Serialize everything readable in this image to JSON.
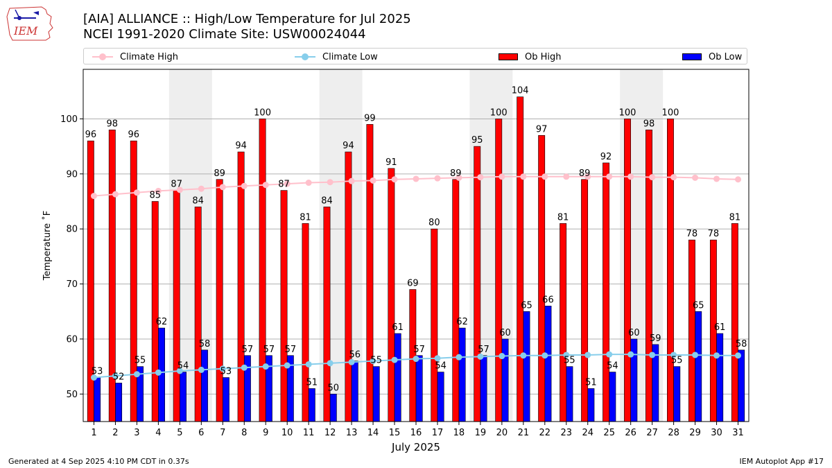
{
  "logo_text": "IEM",
  "title_line1": "[AIA] ALLIANCE :: High/Low Temperature for Jul 2025",
  "title_line2": "NCEI 1991-2020 Climate Site: USW00024044",
  "legend": {
    "climate_high": "Climate High",
    "climate_low": "Climate Low",
    "ob_high": "Ob High",
    "ob_low": "Ob Low"
  },
  "colors": {
    "ob_high": "#ff0000",
    "ob_low": "#0000ff",
    "climate_high": "#ffc0cb",
    "climate_low": "#87ceeb",
    "weekend_shade": "#eeeeee"
  },
  "footer": {
    "generated": "Generated at 4 Sep 2025 4:10 PM CDT in 0.37s",
    "app": "IEM Autoplot App #17"
  },
  "chart_data": {
    "type": "bar",
    "title": "[AIA] ALLIANCE :: High/Low Temperature for Jul 2025",
    "subtitle": "NCEI 1991-2020 Climate Site: USW00024044",
    "xlabel": "July 2025",
    "ylabel": "Temperature ˚F",
    "ylim": [
      45,
      109
    ],
    "yticks": [
      50,
      60,
      70,
      80,
      90,
      100
    ],
    "grid": true,
    "legend_position": "top",
    "categories": [
      "1",
      "2",
      "3",
      "4",
      "5",
      "6",
      "7",
      "8",
      "9",
      "10",
      "11",
      "12",
      "13",
      "14",
      "15",
      "16",
      "17",
      "18",
      "19",
      "20",
      "21",
      "22",
      "23",
      "24",
      "25",
      "26",
      "27",
      "28",
      "29",
      "30",
      "31"
    ],
    "shaded_ranges": [
      [
        5,
        6
      ],
      [
        12,
        13
      ],
      [
        19,
        20
      ],
      [
        26,
        27
      ]
    ],
    "series": [
      {
        "name": "Ob High",
        "kind": "bar",
        "values": [
          96,
          98,
          96,
          85,
          87,
          84,
          89,
          94,
          100,
          87,
          81,
          84,
          94,
          99,
          91,
          69,
          80,
          89,
          95,
          100,
          104,
          97,
          81,
          89,
          92,
          100,
          98,
          100,
          78,
          78,
          81
        ]
      },
      {
        "name": "Ob Low",
        "kind": "bar",
        "values": [
          53,
          52,
          55,
          62,
          54,
          58,
          53,
          57,
          57,
          57,
          51,
          50,
          56,
          55,
          61,
          57,
          54,
          62,
          57,
          60,
          65,
          66,
          55,
          51,
          54,
          60,
          59,
          55,
          65,
          61,
          58
        ]
      },
      {
        "name": "Climate High",
        "kind": "line",
        "values": [
          86.0,
          86.3,
          86.6,
          86.9,
          87.1,
          87.3,
          87.6,
          87.8,
          88.0,
          88.2,
          88.4,
          88.5,
          88.7,
          88.8,
          89.0,
          89.1,
          89.2,
          89.3,
          89.4,
          89.5,
          89.5,
          89.5,
          89.5,
          89.5,
          89.5,
          89.5,
          89.4,
          89.4,
          89.3,
          89.1,
          89.0
        ]
      },
      {
        "name": "Climate Low",
        "kind": "line",
        "values": [
          53.0,
          53.3,
          53.6,
          53.9,
          54.2,
          54.4,
          54.6,
          54.8,
          55.0,
          55.2,
          55.4,
          55.6,
          55.8,
          56.0,
          56.2,
          56.4,
          56.5,
          56.7,
          56.8,
          56.9,
          57.0,
          57.0,
          57.1,
          57.1,
          57.2,
          57.2,
          57.1,
          57.1,
          57.1,
          57.0,
          57.0
        ]
      }
    ]
  }
}
